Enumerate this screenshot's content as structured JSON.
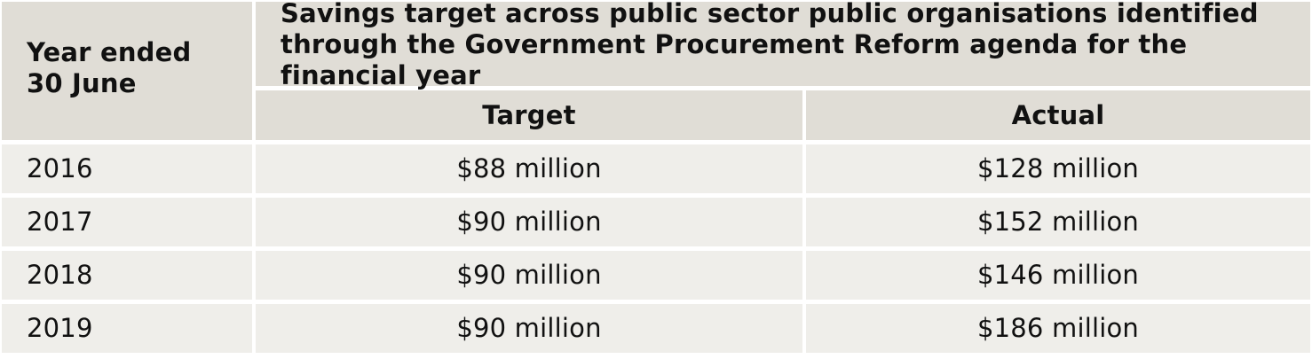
{
  "table": {
    "year_header": "Year ended 30 June",
    "span_header": "Savings target across public sector public organisations identified through the Government Procurement Reform agenda for the financial year",
    "columns": [
      "Target",
      "Actual"
    ],
    "rows": [
      {
        "year": "2016",
        "target": "$88 million",
        "actual": "$128 million"
      },
      {
        "year": "2017",
        "target": "$90 million",
        "actual": "$152 million"
      },
      {
        "year": "2018",
        "target": "$90 million",
        "actual": "$146 million"
      },
      {
        "year": "2019",
        "target": "$90 million",
        "actual": "$186 million"
      }
    ]
  },
  "colors": {
    "header_bg": "#e0ddd6",
    "body_bg": "#efeeea",
    "text": "#111111"
  }
}
